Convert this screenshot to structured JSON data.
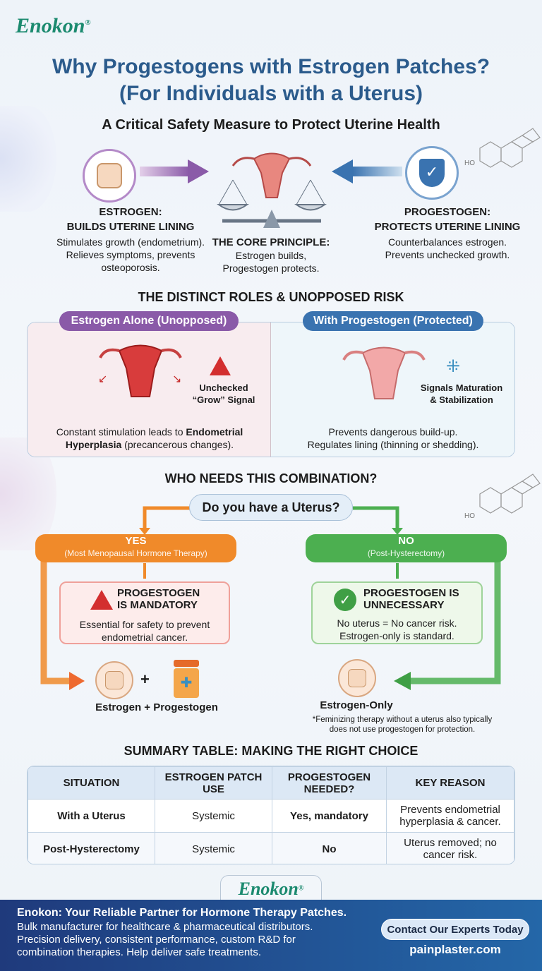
{
  "brand": {
    "logo": "Enokon",
    "registered": "®"
  },
  "header": {
    "title_line1": "Why Progestogens with Estrogen Patches?",
    "title_line2": "(For Individuals with a Uterus)",
    "subtitle": "A Critical Safety Measure to Protect Uterine Health"
  },
  "roles": {
    "estrogen": {
      "title1": "ESTROGEN:",
      "title2": "BUILDS UTERINE LINING",
      "text1": "Stimulates growth (endometrium).",
      "text2": "Relieves symptoms, prevents",
      "text3": "osteoporosis."
    },
    "core": {
      "title": "THE CORE PRINCIPLE:",
      "text1": "Estrogen builds,",
      "text2": "Progestogen protects."
    },
    "progestogen": {
      "title1": "PROGESTOGEN:",
      "title2": "PROTECTS UTERINE LINING",
      "text1": "Counterbalances estrogen.",
      "text2": "Prevents unchecked growth."
    }
  },
  "distinct": {
    "heading": "THE DISTINCT ROLES & UNOPPOSED RISK",
    "left": {
      "label": "Estrogen Alone (Unopposed)",
      "signal1": "Unchecked",
      "signal2": "“Grow” Signal",
      "text1a": "Constant stimulation leads to ",
      "text1b": "Endometrial",
      "text2a": "Hyperplasia",
      "text2b": " (precancerous changes)."
    },
    "right": {
      "label": "With Progestogen (Protected)",
      "signal1": "Signals Maturation",
      "signal2": "& Stabilization",
      "text1": "Prevents dangerous build-up.",
      "text2": "Regulates lining (thinning or shedding)."
    }
  },
  "who": {
    "heading": "WHO NEEDS THIS COMBINATION?",
    "question": "Do you have a Uterus?",
    "yes": {
      "label": "YES",
      "sub": "(Most Menopausal Hormone Therapy)",
      "box_title1": "PROGESTOGEN",
      "box_title2": "IS MANDATORY",
      "box_text1": "Essential for safety to prevent",
      "box_text2": "endometrial cancer.",
      "plus": "+",
      "result": "Estrogen + Progestogen"
    },
    "no": {
      "label": "NO",
      "sub": "(Post-Hysterectomy)",
      "box_title1": "PROGESTOGEN IS",
      "box_title2": "UNNECESSARY",
      "box_text1": "No uterus = No cancer risk.",
      "box_text2": "Estrogen-only is standard.",
      "result": "Estrogen-Only",
      "note1": "*Feminizing therapy without a uterus also typically",
      "note2": "does not use progestogen for protection."
    },
    "colors": {
      "yes": "#f08a2a",
      "no": "#4caf50"
    }
  },
  "summary": {
    "heading": "SUMMARY TABLE: MAKING THE RIGHT CHOICE",
    "columns": [
      "SITUATION",
      "ESTROGEN PATCH USE",
      "PROGESTOGEN NEEDED?",
      "KEY REASON"
    ],
    "rows": [
      [
        "With a Uterus",
        "Systemic",
        "Yes, mandatory",
        "Prevents endometrial hyperplasia & cancer."
      ],
      [
        "Post-Hysterectomy",
        "Systemic",
        "No",
        "Uterus removed; no cancer risk."
      ]
    ]
  },
  "footer": {
    "headline": "Enokon: Your Reliable Partner for Hormone Therapy Patches.",
    "line1": "Bulk manufacturer for healthcare & pharmaceutical distributors.",
    "line2": "Precision delivery, consistent performance, custom R&D for",
    "line3": "combination therapies. Help deliver safe treatments.",
    "cta": "Contact Our Experts Today",
    "website": "painplaster.com"
  },
  "molecule_label": "HO",
  "colors": {
    "title": "#2b5b8c",
    "brand": "#1b8a6f",
    "estrogen": "#8a5aa8",
    "progestogen": "#3a73b0",
    "footer": "#1f3a7c"
  }
}
